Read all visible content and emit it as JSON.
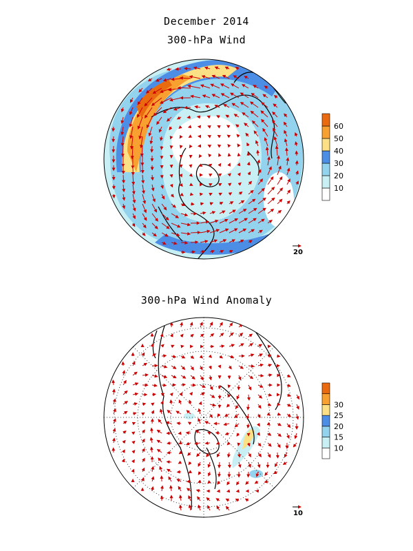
{
  "header": {
    "title": "December 2014",
    "top_panel_title": "300-hPa Wind",
    "bottom_panel_title": "300-hPa Wind Anomaly"
  },
  "top_panel": {
    "colorbar_labels": [
      "10",
      "20",
      "30",
      "40",
      "50",
      "60"
    ],
    "colorbar_colors": [
      "#ffffff",
      "#c8f0f4",
      "#93d3ee",
      "#4c8ee6",
      "#fce085",
      "#f8a030",
      "#ea6a10"
    ],
    "reference_vector_label": "20"
  },
  "bottom_panel": {
    "colorbar_labels": [
      "10",
      "15",
      "20",
      "25",
      "30"
    ],
    "colorbar_colors": [
      "#ffffff",
      "#c8f0f4",
      "#93d3ee",
      "#4c8ee6",
      "#fce085",
      "#f8a030",
      "#ea6a10"
    ],
    "reference_vector_label": "10"
  },
  "colors": {
    "arrow": "#cc0000",
    "land_outline": "#000000",
    "grid": "#000000"
  }
}
